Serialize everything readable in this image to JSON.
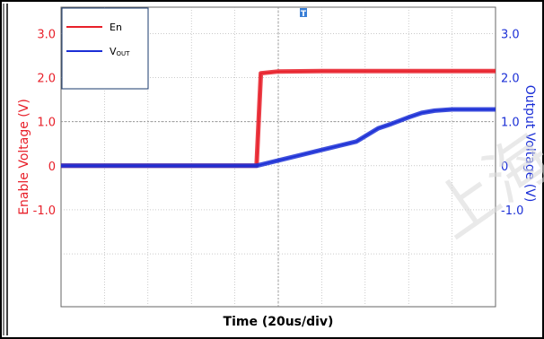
{
  "chart_data": {
    "type": "line",
    "xlabel": "Time  (20us/div)",
    "ylabel_left": "Enable Voltage   (V)",
    "ylabel_right": "Output Voltage   (V)",
    "xlim": [
      0,
      10
    ],
    "ylim": [
      -3.2,
      3.6
    ],
    "y_ticks": [
      "3.0",
      "2.0",
      "1.0",
      "0",
      "-1.0"
    ],
    "y_tick_values": [
      3.0,
      2.0,
      1.0,
      0,
      -1.0
    ],
    "grid": true,
    "legend_position": "top-left",
    "series": [
      {
        "name": "En",
        "color": "#e8202a",
        "x": [
          0,
          1,
          2,
          3,
          4.5,
          4.6,
          5,
          6,
          7,
          8,
          9,
          10
        ],
        "y": [
          0,
          0,
          0,
          0,
          0,
          2.1,
          2.14,
          2.15,
          2.15,
          2.15,
          2.15,
          2.15
        ]
      },
      {
        "name": "VOUT",
        "color": "#1b2fd6",
        "x": [
          0,
          4.5,
          6.8,
          7.3,
          7.6,
          8.0,
          8.3,
          8.6,
          9.0,
          9.5,
          10
        ],
        "y": [
          0,
          0,
          0.55,
          0.85,
          0.95,
          1.1,
          1.2,
          1.25,
          1.28,
          1.28,
          1.28
        ]
      }
    ]
  },
  "legend": {
    "en_label": "En",
    "vout_label_main": "V",
    "vout_label_sub": "OUT"
  },
  "trigger_marker": "T",
  "watermark": "上海",
  "colors": {
    "en": "#e8202a",
    "vout": "#1b2fd6",
    "grid": "#aaaaaa",
    "frame": "#1a3a6e"
  }
}
